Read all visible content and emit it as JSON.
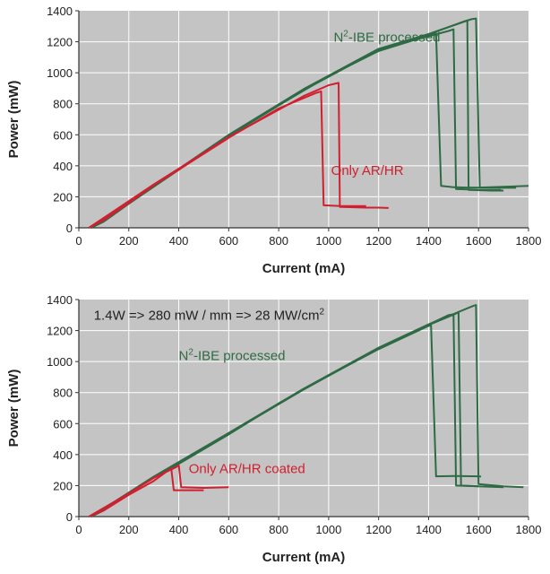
{
  "colors": {
    "green": "#2e6b45",
    "red": "#d02030",
    "plot_bg": "#c4c4c4",
    "grid": "#ffffff",
    "text": "#222222"
  },
  "chart_data": [
    {
      "type": "line",
      "xlabel": "Current (mA)",
      "ylabel": "Power (mW)",
      "xlim": [
        0,
        1800
      ],
      "ylim": [
        0,
        1400
      ],
      "x_ticks": [
        0,
        200,
        400,
        600,
        800,
        1000,
        1200,
        1400,
        1600,
        1800
      ],
      "y_ticks": [
        0,
        200,
        400,
        600,
        800,
        1000,
        1200,
        1400
      ],
      "grid": true,
      "annotations": [
        {
          "text": "N2-IBE processed",
          "prefix": "N",
          "sup": "2",
          "suffix": "-IBE processed",
          "color": "green",
          "x": 1020,
          "y": 1200
        },
        {
          "text": "Only AR/HR",
          "prefix": "Only AR/HR",
          "sup": "",
          "suffix": "",
          "color": "red",
          "x": 1010,
          "y": 340
        }
      ],
      "series": [
        {
          "color": "green",
          "points": [
            [
              50,
              0
            ],
            [
              100,
              40
            ],
            [
              200,
              155
            ],
            [
              300,
              265
            ],
            [
              400,
              375
            ],
            [
              600,
              590
            ],
            [
              800,
              790
            ],
            [
              1000,
              980
            ],
            [
              1200,
              1140
            ],
            [
              1400,
              1240
            ],
            [
              1430,
              1255
            ],
            [
              1450,
              270
            ],
            [
              1500,
              262
            ],
            [
              1550,
              260
            ],
            [
              1700,
              258
            ],
            [
              1750,
              258
            ]
          ]
        },
        {
          "color": "green",
          "points": [
            [
              50,
              0
            ],
            [
              300,
              268
            ],
            [
              600,
              595
            ],
            [
              900,
              890
            ],
            [
              1200,
              1150
            ],
            [
              1480,
              1270
            ],
            [
              1500,
              1280
            ],
            [
              1510,
              250
            ],
            [
              1600,
              245
            ],
            [
              1690,
              245
            ]
          ]
        },
        {
          "color": "green",
          "points": [
            [
              50,
              0
            ],
            [
              300,
              270
            ],
            [
              600,
              600
            ],
            [
              900,
              895
            ],
            [
              1200,
              1155
            ],
            [
              1400,
              1250
            ],
            [
              1570,
              1345
            ],
            [
              1590,
              1350
            ],
            [
              1605,
              260
            ],
            [
              1700,
              265
            ],
            [
              1800,
              270
            ]
          ]
        },
        {
          "color": "green",
          "points": [
            [
              50,
              0
            ],
            [
              300,
              266
            ],
            [
              600,
              592
            ],
            [
              900,
              888
            ],
            [
              1200,
              1148
            ],
            [
              1400,
              1248
            ],
            [
              1540,
              1330
            ],
            [
              1555,
              1338
            ],
            [
              1560,
              245
            ],
            [
              1650,
              240
            ],
            [
              1700,
              240
            ]
          ]
        },
        {
          "color": "red",
          "points": [
            [
              40,
              0
            ],
            [
              100,
              50
            ],
            [
              200,
              160
            ],
            [
              300,
              275
            ],
            [
              400,
              375
            ],
            [
              600,
              580
            ],
            [
              800,
              770
            ],
            [
              950,
              870
            ],
            [
              970,
              880
            ],
            [
              980,
              145
            ],
            [
              1050,
              140
            ],
            [
              1100,
              140
            ],
            [
              1150,
              140
            ]
          ]
        },
        {
          "color": "red",
          "points": [
            [
              40,
              0
            ],
            [
              300,
              280
            ],
            [
              600,
              585
            ],
            [
              900,
              850
            ],
            [
              1000,
              920
            ],
            [
              1040,
              935
            ],
            [
              1045,
              135
            ],
            [
              1150,
              130
            ],
            [
              1200,
              130
            ],
            [
              1240,
              128
            ]
          ]
        }
      ]
    },
    {
      "type": "line",
      "xlabel": "Current (mA)",
      "ylabel": "Power (mW)",
      "xlim": [
        0,
        1800
      ],
      "ylim": [
        0,
        1400
      ],
      "x_ticks": [
        0,
        200,
        400,
        600,
        800,
        1000,
        1200,
        1400,
        1600,
        1800
      ],
      "y_ticks": [
        0,
        200,
        400,
        600,
        800,
        1000,
        1200,
        1400
      ],
      "grid": true,
      "annotations": [
        {
          "text": "1.4W => 280 mW / mm => 28 MW/cm2",
          "prefix": "1.4W => 280 mW / mm => 28 MW/cm",
          "sup": "2",
          "suffix": "",
          "color": "text",
          "x": 60,
          "y": 1270
        },
        {
          "text": "N2-IBE processed",
          "prefix": "N",
          "sup": "2",
          "suffix": "-IBE processed",
          "color": "green",
          "x": 400,
          "y": 1010
        },
        {
          "text": "Only AR/HR coated",
          "prefix": "Only AR/HR coated",
          "sup": "",
          "suffix": "",
          "color": "red",
          "x": 440,
          "y": 280
        }
      ],
      "series": [
        {
          "color": "green",
          "points": [
            [
              50,
              0
            ],
            [
              100,
              40
            ],
            [
              200,
              150
            ],
            [
              300,
              250
            ],
            [
              400,
              340
            ],
            [
              600,
              530
            ],
            [
              800,
              730
            ],
            [
              1000,
              910
            ],
            [
              1200,
              1080
            ],
            [
              1400,
              1230
            ],
            [
              1410,
              1235
            ],
            [
              1430,
              260
            ],
            [
              1500,
              262
            ],
            [
              1600,
              260
            ],
            [
              1610,
              258
            ]
          ]
        },
        {
          "color": "green",
          "points": [
            [
              50,
              0
            ],
            [
              300,
              255
            ],
            [
              600,
              535
            ],
            [
              900,
              820
            ],
            [
              1200,
              1085
            ],
            [
              1480,
              1300
            ],
            [
              1500,
              1305
            ],
            [
              1510,
              200
            ],
            [
              1600,
              195
            ],
            [
              1700,
              190
            ]
          ]
        },
        {
          "color": "green",
          "points": [
            [
              50,
              0
            ],
            [
              300,
              258
            ],
            [
              600,
              540
            ],
            [
              900,
              825
            ],
            [
              1200,
              1090
            ],
            [
              1400,
              1240
            ],
            [
              1580,
              1360
            ],
            [
              1590,
              1365
            ],
            [
              1600,
              210
            ],
            [
              1700,
              195
            ],
            [
              1780,
              190
            ]
          ]
        },
        {
          "color": "green",
          "points": [
            [
              50,
              0
            ],
            [
              300,
              256
            ],
            [
              600,
              536
            ],
            [
              900,
              822
            ],
            [
              1200,
              1087
            ],
            [
              1400,
              1235
            ],
            [
              1510,
              1310
            ],
            [
              1520,
              1320
            ],
            [
              1530,
              200
            ],
            [
              1600,
              195
            ]
          ]
        },
        {
          "color": "red",
          "points": [
            [
              40,
              0
            ],
            [
              100,
              40
            ],
            [
              200,
              140
            ],
            [
              300,
              230
            ],
            [
              360,
              300
            ],
            [
              370,
              310
            ],
            [
              380,
              170
            ],
            [
              450,
              170
            ],
            [
              500,
              170
            ]
          ]
        },
        {
          "color": "red",
          "points": [
            [
              40,
              0
            ],
            [
              200,
              150
            ],
            [
              300,
              250
            ],
            [
              390,
              320
            ],
            [
              400,
              330
            ],
            [
              410,
              190
            ],
            [
              500,
              185
            ],
            [
              600,
              190
            ]
          ]
        }
      ]
    }
  ]
}
